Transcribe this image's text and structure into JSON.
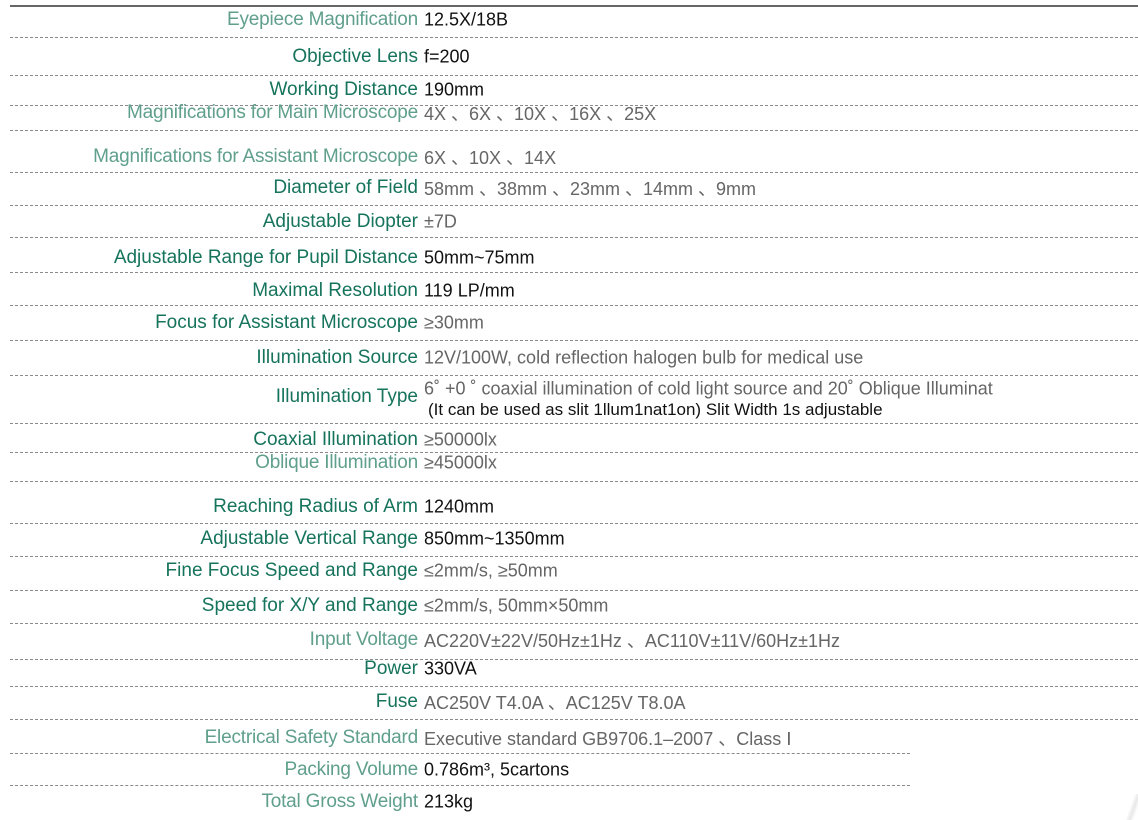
{
  "specs": [
    {
      "label": "Eyepiece Magnification",
      "value": "12.5X/18B"
    },
    {
      "label": "Objective Lens",
      "value": "f=200"
    },
    {
      "label": "Working Distance",
      "value": "190mm"
    },
    {
      "label": "Magnifications for Main Microscope",
      "value": "4X 、6X 、10X 、16X 、25X"
    },
    {
      "label": "Magnifications for Assistant Microscope",
      "value": "6X 、10X 、14X"
    },
    {
      "label": "Diameter of Field",
      "value": "58mm 、38mm 、23mm 、14mm 、9mm"
    },
    {
      "label": "Adjustable Diopter",
      "value": "±7D"
    },
    {
      "label": "Adjustable Range for Pupil Distance",
      "value": "50mm~75mm"
    },
    {
      "label": "Maximal Resolution",
      "value": "119 LP/mm"
    },
    {
      "label": "Focus for Assistant Microscope",
      "value": "≥30mm"
    },
    {
      "label": "Illumination Source",
      "value": "12V/100W, cold reflection halogen bulb for medical use"
    },
    {
      "label": "Illumination Type",
      "value": "6˚ +0 ˚ coaxial illumination of cold light source and 20˚ Oblique Illuminat",
      "value2": "(It can be used as slit 1llum1nat1on) Slit Width 1s adjustable"
    },
    {
      "label": "Coaxial Illumination",
      "value": "≥50000lx"
    },
    {
      "label": "Oblique Illumination",
      "value": "≥45000lx"
    },
    {
      "label": "Reaching Radius of Arm",
      "value": "1240mm"
    },
    {
      "label": "Adjustable Vertical Range",
      "value": "850mm~1350mm"
    },
    {
      "label": "Fine Focus Speed and Range",
      "value": "≤2mm/s, ≥50mm"
    },
    {
      "label": "Speed for X/Y and Range",
      "value": "≤2mm/s, 50mm×50mm"
    },
    {
      "label": "Input Voltage",
      "value": "AC220V±22V/50Hz±1Hz 、AC110V±11V/60Hz±1Hz"
    },
    {
      "label": "Power",
      "value": "330VA"
    },
    {
      "label": "Fuse",
      "value": "AC250V T4.0A 、AC125V T8.0A"
    },
    {
      "label": "Electrical Safety Standard",
      "value": "Executive standard GB9706.1–2007 、Class Ⅰ"
    },
    {
      "label": "Packing Volume",
      "value": "0.786m³, 5cartons"
    },
    {
      "label": "Total Gross Weight",
      "value": "213kg"
    }
  ],
  "colors": {
    "label": "#16735c",
    "label_light": "#5f9f8c",
    "value": "#111111",
    "value_grey": "#666666"
  }
}
